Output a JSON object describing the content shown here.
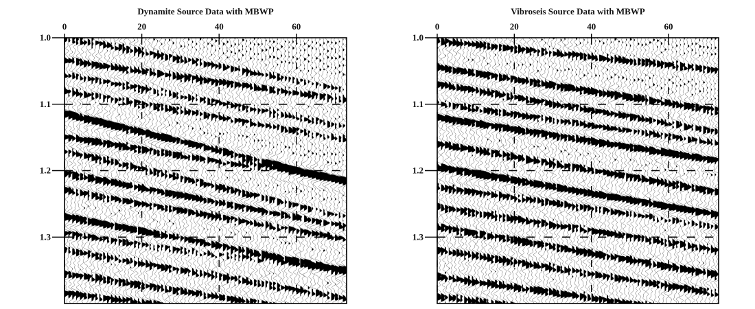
{
  "chart_data": [
    {
      "type": "seismic_wiggle",
      "title": "Dynamite Source Data with MBWP",
      "xlabel": "",
      "ylabel": "",
      "xlim": [
        0,
        73
      ],
      "ylim": [
        1.0,
        1.4
      ],
      "x_ticks": [
        "0",
        "20",
        "40",
        "60"
      ],
      "x_tick_values": [
        0,
        20,
        40,
        60
      ],
      "y_ticks": [
        "1.0",
        "1.1",
        "1.2",
        "1.3"
      ],
      "y_tick_values": [
        1.0,
        1.1,
        1.2,
        1.3
      ],
      "grid": "dashed horizontal at 1.1, 1.2, 1.3",
      "trace_count": 74,
      "events": [
        {
          "t0": 1.0,
          "dip": 0.0011,
          "amp": 0.7
        },
        {
          "t0": 1.035,
          "dip": 0.0008,
          "amp": 0.9
        },
        {
          "t0": 1.055,
          "dip": 0.0011,
          "amp": 0.6
        },
        {
          "t0": 1.08,
          "dip": 0.001,
          "amp": 0.7
        },
        {
          "t0": 1.115,
          "dip": 0.0014,
          "amp": 1.6
        },
        {
          "t0": 1.15,
          "dip": 0.0009,
          "amp": 1.0
        },
        {
          "t0": 1.17,
          "dip": 0.0014,
          "amp": 0.8
        },
        {
          "t0": 1.205,
          "dip": 0.0011,
          "amp": 1.1
        },
        {
          "t0": 1.23,
          "dip": 0.001,
          "amp": 0.9
        },
        {
          "t0": 1.27,
          "dip": 0.0011,
          "amp": 1.3
        },
        {
          "t0": 1.295,
          "dip": 0.0008,
          "amp": 0.8
        },
        {
          "t0": 1.32,
          "dip": 0.001,
          "amp": 0.7
        },
        {
          "t0": 1.355,
          "dip": 0.0009,
          "amp": 0.9
        },
        {
          "t0": 1.385,
          "dip": 0.0007,
          "amp": 0.9
        }
      ]
    },
    {
      "type": "seismic_wiggle",
      "title": "Vibroseis Source Data with MBWP",
      "xlabel": "",
      "ylabel": "",
      "xlim": [
        0,
        73
      ],
      "ylim": [
        1.0,
        1.4
      ],
      "x_ticks": [
        "0",
        "20",
        "40",
        "60"
      ],
      "x_tick_values": [
        0,
        20,
        40,
        60
      ],
      "y_ticks": [
        "1.0",
        "1.1",
        "1.2",
        "1.3"
      ],
      "y_tick_values": [
        1.0,
        1.1,
        1.2,
        1.3
      ],
      "grid": "dashed horizontal at 1.1, 1.2, 1.3",
      "trace_count": 74,
      "events": [
        {
          "t0": 1.005,
          "dip": 0.0006,
          "amp": 0.8
        },
        {
          "t0": 1.045,
          "dip": 0.0009,
          "amp": 1.1
        },
        {
          "t0": 1.07,
          "dip": 0.001,
          "amp": 0.9
        },
        {
          "t0": 1.1,
          "dip": 0.0008,
          "amp": 0.8
        },
        {
          "t0": 1.12,
          "dip": 0.0009,
          "amp": 1.3
        },
        {
          "t0": 1.16,
          "dip": 0.001,
          "amp": 0.9
        },
        {
          "t0": 1.195,
          "dip": 0.001,
          "amp": 1.5
        },
        {
          "t0": 1.225,
          "dip": 0.0008,
          "amp": 0.8
        },
        {
          "t0": 1.255,
          "dip": 0.0009,
          "amp": 0.8
        },
        {
          "t0": 1.285,
          "dip": 0.001,
          "amp": 1.0
        },
        {
          "t0": 1.32,
          "dip": 0.0009,
          "amp": 0.8
        },
        {
          "t0": 1.36,
          "dip": 0.0008,
          "amp": 0.9
        },
        {
          "t0": 1.39,
          "dip": 0.0007,
          "amp": 0.8
        }
      ]
    }
  ]
}
